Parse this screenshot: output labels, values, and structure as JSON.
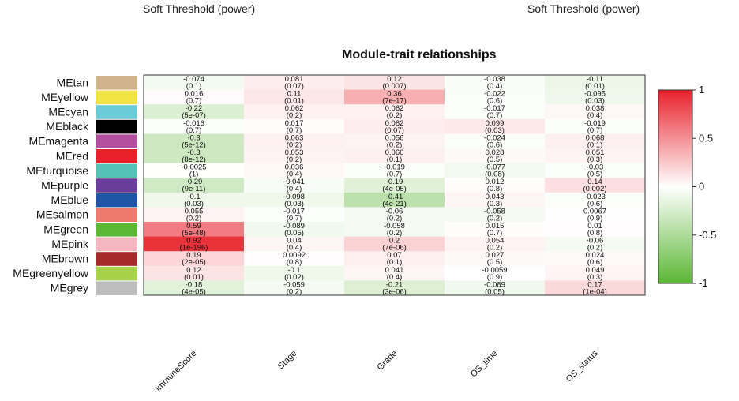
{
  "header": {
    "left_label": "Soft Threshold (power)",
    "right_label": "Soft Threshold (power)"
  },
  "chart_data": {
    "type": "heatmap",
    "title": "Module-trait relationships",
    "rows": [
      "MEtan",
      "MEyellow",
      "MEcyan",
      "MEblack",
      "MEmagenta",
      "MEred",
      "MEturquoise",
      "MEpurple",
      "MEblue",
      "MEsalmon",
      "MEgreen",
      "MEpink",
      "MEbrown",
      "MEgreenyellow",
      "MEgrey"
    ],
    "row_colors": [
      "#d2b48c",
      "#f0e442",
      "#6ccbd8",
      "#000000",
      "#b44fa0",
      "#e8202a",
      "#55c1b6",
      "#6a3d9a",
      "#1f56a6",
      "#ee7a6d",
      "#5bb734",
      "#f5b8c3",
      "#a52a2a",
      "#a8d14a",
      "#bebebe"
    ],
    "columns": [
      "ImmuneScore",
      "Stage",
      "Grade",
      "OS_time",
      "OS_status"
    ],
    "values": [
      [
        -0.074,
        0.081,
        0.12,
        -0.038,
        -0.11
      ],
      [
        0.016,
        0.11,
        0.36,
        -0.022,
        -0.095
      ],
      [
        -0.22,
        0.062,
        0.062,
        -0.017,
        0.038
      ],
      [
        -0.016,
        0.017,
        0.082,
        0.099,
        -0.019
      ],
      [
        -0.3,
        0.063,
        0.056,
        -0.024,
        0.068
      ],
      [
        -0.3,
        0.053,
        0.066,
        0.028,
        0.051
      ],
      [
        -0.0025,
        0.036,
        -0.019,
        -0.077,
        -0.03
      ],
      [
        -0.29,
        -0.041,
        -0.19,
        0.012,
        0.14
      ],
      [
        -0.1,
        -0.098,
        -0.41,
        0.043,
        -0.023
      ],
      [
        0.055,
        -0.017,
        -0.06,
        -0.058,
        0.0067
      ],
      [
        0.59,
        -0.089,
        -0.058,
        0.015,
        0.01
      ],
      [
        0.92,
        0.04,
        0.2,
        0.054,
        -0.06
      ],
      [
        0.19,
        0.0092,
        0.07,
        0.027,
        0.024
      ],
      [
        0.12,
        -0.1,
        0.041,
        -0.0059,
        0.049
      ],
      [
        -0.18,
        -0.059,
        -0.21,
        -0.089,
        0.17
      ]
    ],
    "pvalues": [
      [
        "(0.1)",
        "(0.07)",
        "(0.007)",
        "(0.4)",
        "(0.01)"
      ],
      [
        "(0.7)",
        "(0.01)",
        "(7e-17)",
        "(0.6)",
        "(0.03)"
      ],
      [
        "(5e-07)",
        "(0.2)",
        "(0.2)",
        "(0.7)",
        "(0.4)"
      ],
      [
        "(0.7)",
        "(0.7)",
        "(0.07)",
        "(0.03)",
        "(0.7)"
      ],
      [
        "(5e-12)",
        "(0.2)",
        "(0.2)",
        "(0.6)",
        "(0.1)"
      ],
      [
        "(8e-12)",
        "(0.2)",
        "(0.1)",
        "(0.5)",
        "(0.3)"
      ],
      [
        "(1)",
        "(0.4)",
        "(0.7)",
        "(0.08)",
        "(0.5)"
      ],
      [
        "(9e-11)",
        "(0.4)",
        "(4e-05)",
        "(0.8)",
        "(0.002)"
      ],
      [
        "(0.03)",
        "(0.03)",
        "(4e-21)",
        "(0.3)",
        "(0.6)"
      ],
      [
        "(0.2)",
        "(0.7)",
        "(0.2)",
        "(0.2)",
        "(0.9)"
      ],
      [
        "(5e-48)",
        "(0.05)",
        "(0.2)",
        "(0.7)",
        "(0.8)"
      ],
      [
        "(1e-196)",
        "(0.4)",
        "(7e-06)",
        "(0.2)",
        "(0.2)"
      ],
      [
        "(2e-05)",
        "(0.8)",
        "(0.1)",
        "(0.5)",
        "(0.6)"
      ],
      [
        "(0.01)",
        "(0.02)",
        "(0.4)",
        "(0.9)",
        "(0.3)"
      ],
      [
        "(4e-05)",
        "(0.2)",
        "(3e-06)",
        "(0.05)",
        "(1e-04)"
      ]
    ],
    "legend": {
      "ticks": [
        "1",
        "0.5",
        "0",
        "-0.5",
        "-1"
      ],
      "tick_values": [
        1,
        0.5,
        0,
        -0.5,
        -1
      ],
      "range": [
        -1,
        1
      ],
      "low_color": "#5bb734",
      "mid_color": "#ffffff",
      "high_color": "#e8202a",
      "placement": "right"
    }
  }
}
